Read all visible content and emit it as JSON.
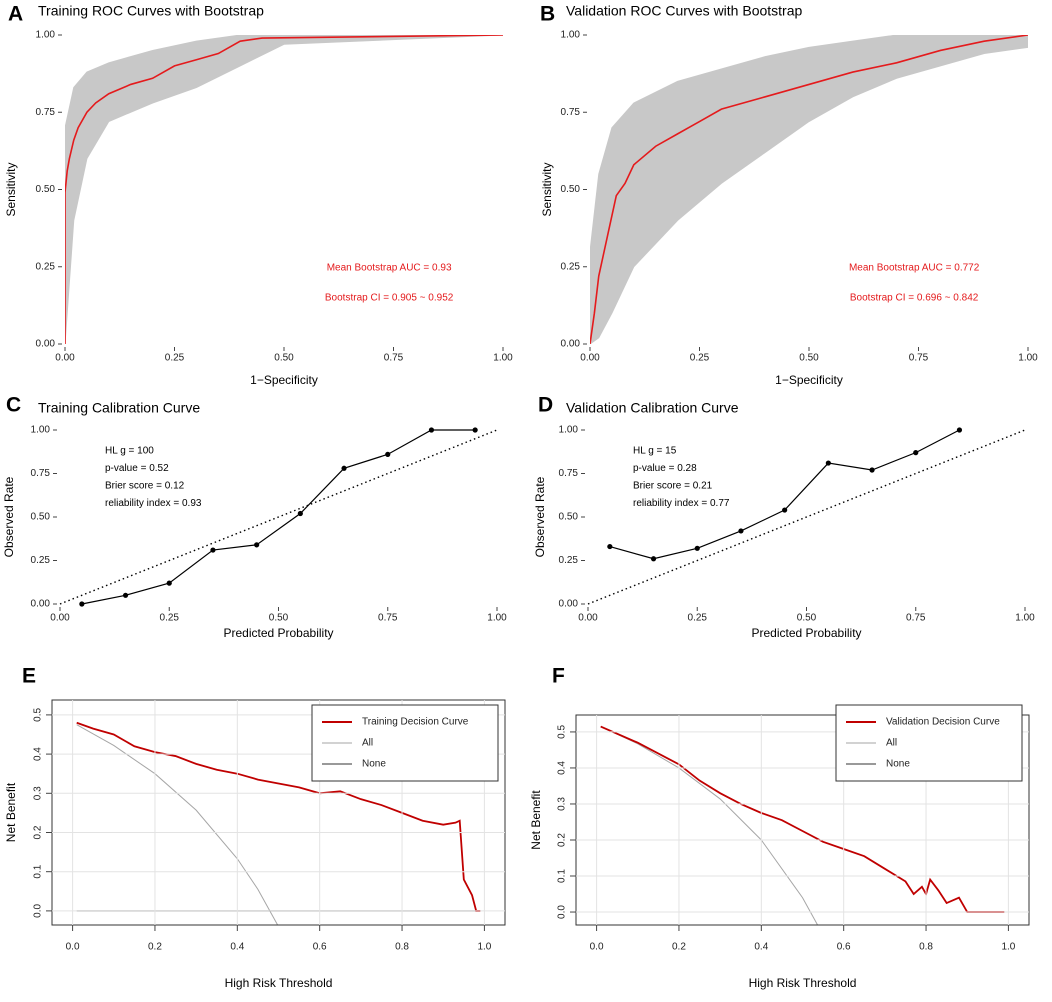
{
  "chart_data": [
    {
      "type": "roc",
      "panel_label": "A",
      "title": "Training ROC Curves with Bootstrap",
      "x_label": "1−Specificity",
      "y_label": "Sensitivity",
      "x": [
        0,
        0,
        0.005,
        0.01,
        0.02,
        0.03,
        0.05,
        0.07,
        0.1,
        0.15,
        0.2,
        0.25,
        0.3,
        0.35,
        0.4,
        0.45,
        1
      ],
      "values": [
        0,
        0.49,
        0.56,
        0.6,
        0.66,
        0.7,
        0.75,
        0.78,
        0.81,
        0.84,
        0.86,
        0.9,
        0.92,
        0.94,
        0.98,
        0.99,
        1
      ],
      "color": "#e41a1c",
      "band": {
        "x": [
          0,
          0.02,
          0.05,
          0.1,
          0.2,
          0.3,
          0.4,
          0.5,
          1
        ],
        "upper": [
          0.7,
          0.83,
          0.88,
          0.91,
          0.95,
          0.98,
          1,
          1,
          1
        ],
        "lower": [
          0,
          0.4,
          0.6,
          0.72,
          0.78,
          0.83,
          0.9,
          0.97,
          1
        ],
        "color": "#c8c8c8"
      },
      "annotations": [
        "Mean Bootstrap AUC = 0.93",
        "Bootstrap CI = 0.905 ~ 0.952"
      ],
      "annotation_color": "#e41a1c",
      "xlim": [
        0,
        1
      ],
      "ylim": [
        0,
        1
      ],
      "xticks": [
        {
          "value": 0,
          "label": "0.00"
        },
        {
          "value": 0.25,
          "label": "0.25"
        },
        {
          "value": 0.5,
          "label": "0.50"
        },
        {
          "value": 0.75,
          "label": "0.75"
        },
        {
          "value": 1,
          "label": "1.00"
        }
      ],
      "yticks": [
        {
          "value": 0,
          "label": "0.00"
        },
        {
          "value": 0.25,
          "label": "0.25"
        },
        {
          "value": 0.5,
          "label": "0.50"
        },
        {
          "value": 0.75,
          "label": "0.75"
        },
        {
          "value": 1,
          "label": "1.00"
        }
      ]
    },
    {
      "type": "roc",
      "panel_label": "B",
      "title": "Validation ROC Curves with Bootstrap",
      "x_label": "1−Specificity",
      "y_label": "Sensitivity",
      "x": [
        0,
        0.01,
        0.02,
        0.04,
        0.06,
        0.08,
        0.1,
        0.15,
        0.2,
        0.25,
        0.3,
        0.4,
        0.5,
        0.6,
        0.7,
        0.8,
        0.9,
        1
      ],
      "values": [
        0,
        0.1,
        0.22,
        0.35,
        0.48,
        0.52,
        0.58,
        0.64,
        0.68,
        0.72,
        0.76,
        0.8,
        0.84,
        0.88,
        0.91,
        0.95,
        0.98,
        1
      ],
      "color": "#e41a1c",
      "band": {
        "x": [
          0,
          0.02,
          0.05,
          0.1,
          0.2,
          0.3,
          0.4,
          0.5,
          0.6,
          0.7,
          0.8,
          0.9,
          1
        ],
        "upper": [
          0.3,
          0.55,
          0.7,
          0.78,
          0.85,
          0.89,
          0.93,
          0.96,
          0.98,
          1,
          1,
          1,
          1
        ],
        "lower": [
          0,
          0.02,
          0.1,
          0.25,
          0.4,
          0.52,
          0.62,
          0.72,
          0.8,
          0.86,
          0.9,
          0.94,
          0.96
        ],
        "color": "#c8c8c8"
      },
      "annotations": [
        "Mean Bootstrap AUC = 0.772",
        "Bootstrap CI = 0.696 ~ 0.842"
      ],
      "annotation_color": "#e41a1c",
      "xlim": [
        0,
        1
      ],
      "ylim": [
        0,
        1
      ],
      "xticks": [
        {
          "value": 0,
          "label": "0.00"
        },
        {
          "value": 0.25,
          "label": "0.25"
        },
        {
          "value": 0.5,
          "label": "0.50"
        },
        {
          "value": 0.75,
          "label": "0.75"
        },
        {
          "value": 1,
          "label": "1.00"
        }
      ],
      "yticks": [
        {
          "value": 0,
          "label": "0.00"
        },
        {
          "value": 0.25,
          "label": "0.25"
        },
        {
          "value": 0.5,
          "label": "0.50"
        },
        {
          "value": 0.75,
          "label": "0.75"
        },
        {
          "value": 1,
          "label": "1.00"
        }
      ]
    },
    {
      "type": "calibration",
      "panel_label": "C",
      "title": "Training Calibration Curve",
      "x_label": "Predicted Probability",
      "y_label": "Observed Rate",
      "x": [
        0.05,
        0.15,
        0.25,
        0.35,
        0.45,
        0.55,
        0.65,
        0.75,
        0.85,
        0.95
      ],
      "values": [
        0,
        0.05,
        0.12,
        0.31,
        0.34,
        0.52,
        0.78,
        0.86,
        1,
        1
      ],
      "color": "#000000",
      "reference_line": true,
      "annotations": [
        "HL g = 100",
        "p-value = 0.52",
        "Brier score = 0.12",
        "reliability index = 0.93"
      ],
      "annotation_color": "#000000",
      "xlim": [
        0,
        1
      ],
      "ylim": [
        0,
        1
      ],
      "xticks": [
        {
          "value": 0,
          "label": "0.00"
        },
        {
          "value": 0.25,
          "label": "0.25"
        },
        {
          "value": 0.5,
          "label": "0.50"
        },
        {
          "value": 0.75,
          "label": "0.75"
        },
        {
          "value": 1,
          "label": "1.00"
        }
      ],
      "yticks": [
        {
          "value": 0,
          "label": "0.00"
        },
        {
          "value": 0.25,
          "label": "0.25"
        },
        {
          "value": 0.5,
          "label": "0.50"
        },
        {
          "value": 0.75,
          "label": "0.75"
        },
        {
          "value": 1,
          "label": "1.00"
        }
      ]
    },
    {
      "type": "calibration",
      "panel_label": "D",
      "title": "Validation Calibration Curve",
      "x_label": "Predicted Probability",
      "y_label": "Observed Rate",
      "x": [
        0.05,
        0.15,
        0.25,
        0.35,
        0.45,
        0.55,
        0.65,
        0.75,
        0.85
      ],
      "values": [
        0.33,
        0.26,
        0.32,
        0.42,
        0.54,
        0.81,
        0.77,
        0.87,
        1
      ],
      "color": "#000000",
      "reference_line": true,
      "annotations": [
        "HL g = 15",
        "p-value = 0.28",
        "Brier score = 0.21",
        "reliability index = 0.77"
      ],
      "annotation_color": "#000000",
      "xlim": [
        0,
        1
      ],
      "ylim": [
        0,
        1
      ],
      "xticks": [
        {
          "value": 0,
          "label": "0.00"
        },
        {
          "value": 0.25,
          "label": "0.25"
        },
        {
          "value": 0.5,
          "label": "0.50"
        },
        {
          "value": 0.75,
          "label": "0.75"
        },
        {
          "value": 1,
          "label": "1.00"
        }
      ],
      "yticks": [
        {
          "value": 0,
          "label": "0.00"
        },
        {
          "value": 0.25,
          "label": "0.25"
        },
        {
          "value": 0.5,
          "label": "0.50"
        },
        {
          "value": 0.75,
          "label": "0.75"
        },
        {
          "value": 1,
          "label": "1.00"
        }
      ]
    },
    {
      "type": "decision",
      "panel_label": "E",
      "x_label": "High Risk Threshold",
      "y_label": "Net Benefit",
      "series": [
        {
          "name": "Training Decision Curve",
          "color": "#c00000",
          "x": [
            0.01,
            0.05,
            0.1,
            0.15,
            0.2,
            0.25,
            0.3,
            0.35,
            0.4,
            0.45,
            0.5,
            0.55,
            0.6,
            0.65,
            0.7,
            0.75,
            0.8,
            0.85,
            0.9,
            0.93,
            0.94,
            0.95,
            0.97,
            0.98,
            0.99
          ],
          "values": [
            0.48,
            0.465,
            0.45,
            0.42,
            0.405,
            0.395,
            0.375,
            0.36,
            0.35,
            0.335,
            0.325,
            0.315,
            0.3,
            0.305,
            0.285,
            0.27,
            0.25,
            0.23,
            0.22,
            0.225,
            0.23,
            0.08,
            0.04,
            0,
            0
          ]
        },
        {
          "name": "All",
          "color": "#a6a6a6",
          "x": [
            0.01,
            0.1,
            0.2,
            0.3,
            0.4,
            0.45,
            0.5
          ],
          "values": [
            0.475,
            0.422,
            0.35,
            0.257,
            0.133,
            0.055,
            -0.04
          ]
        },
        {
          "name": "None",
          "color": "#333333",
          "x": [
            0.01,
            0.99
          ],
          "values": [
            0,
            0
          ]
        }
      ],
      "legend": "top-right",
      "grid": true,
      "xlim": [
        -0.05,
        1.05
      ],
      "ylim": [
        -0.036,
        0.538
      ],
      "xticks": [
        {
          "value": 0,
          "label": "0.0"
        },
        {
          "value": 0.2,
          "label": "0.2"
        },
        {
          "value": 0.4,
          "label": "0.4"
        },
        {
          "value": 0.6,
          "label": "0.6"
        },
        {
          "value": 0.8,
          "label": "0.8"
        },
        {
          "value": 1,
          "label": "1.0"
        }
      ],
      "yticks": [
        {
          "value": 0,
          "label": "0.0"
        },
        0.1,
        0.2,
        0.3,
        0.4,
        0.5
      ]
    },
    {
      "type": "decision",
      "panel_label": "F",
      "x_label": "High Risk Threshold",
      "y_label": "Net Benefit",
      "series": [
        {
          "name": "Validation Decision Curve",
          "color": "#c00000",
          "x": [
            0.01,
            0.1,
            0.2,
            0.25,
            0.3,
            0.35,
            0.4,
            0.45,
            0.5,
            0.55,
            0.6,
            0.65,
            0.7,
            0.75,
            0.77,
            0.79,
            0.8,
            0.81,
            0.83,
            0.85,
            0.88,
            0.9,
            0.95,
            0.99
          ],
          "values": [
            0.515,
            0.47,
            0.41,
            0.365,
            0.33,
            0.3,
            0.275,
            0.255,
            0.225,
            0.195,
            0.175,
            0.155,
            0.12,
            0.085,
            0.05,
            0.07,
            0.05,
            0.09,
            0.06,
            0.025,
            0.04,
            0,
            0,
            0
          ]
        },
        {
          "name": "All",
          "color": "#a6a6a6",
          "x": [
            0.01,
            0.1,
            0.2,
            0.3,
            0.4,
            0.5,
            0.54
          ],
          "values": [
            0.515,
            0.467,
            0.4,
            0.314,
            0.2,
            0.04,
            -0.043
          ]
        },
        {
          "name": "None",
          "color": "#333333",
          "x": [
            0.01,
            0.99
          ],
          "values": [
            0,
            0
          ]
        }
      ],
      "legend": "top-right",
      "grid": true,
      "xlim": [
        -0.05,
        1.05
      ],
      "ylim": [
        -0.036,
        0.547
      ],
      "xticks": [
        {
          "value": 0,
          "label": "0.0"
        },
        {
          "value": 0.2,
          "label": "0.2"
        },
        {
          "value": 0.4,
          "label": "0.4"
        },
        {
          "value": 0.6,
          "label": "0.6"
        },
        {
          "value": 0.8,
          "label": "0.8"
        },
        {
          "value": 1,
          "label": "1.0"
        }
      ],
      "yticks": [
        {
          "value": 0,
          "label": "0.0"
        },
        0.1,
        0.2,
        0.3,
        0.4,
        0.5
      ]
    }
  ]
}
